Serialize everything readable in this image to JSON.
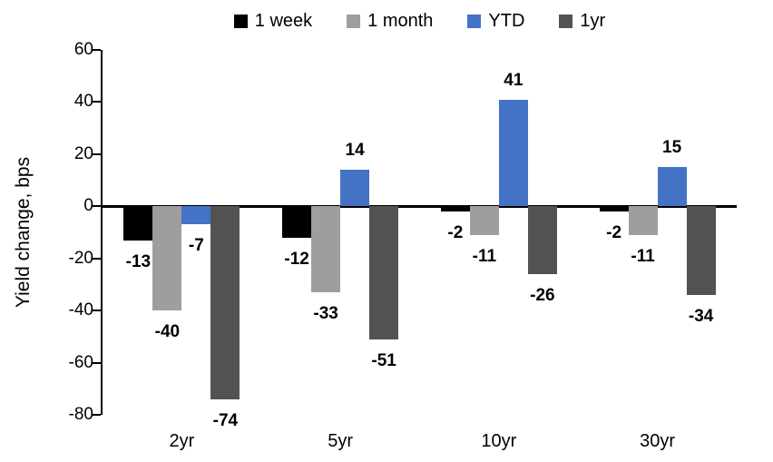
{
  "chart_data": {
    "type": "bar",
    "title": "",
    "xlabel": "",
    "ylabel": "Yield change, bps",
    "categories": [
      "2yr",
      "5yr",
      "10yr",
      "30yr"
    ],
    "series": [
      {
        "name": "1 week",
        "color": "#000000",
        "values": [
          -13,
          -12,
          -2,
          -2
        ]
      },
      {
        "name": "1 month",
        "color": "#9E9E9E",
        "values": [
          -40,
          -33,
          -11,
          -11
        ]
      },
      {
        "name": "YTD",
        "color": "#4472C4",
        "values": [
          -7,
          14,
          41,
          15
        ]
      },
      {
        "name": "1yr",
        "color": "#525252",
        "values": [
          -74,
          -51,
          -26,
          -34
        ]
      }
    ],
    "ylim": [
      -80,
      60
    ],
    "yticks": [
      60,
      40,
      20,
      0,
      -20,
      -40,
      -60,
      -80
    ],
    "grid": false,
    "legend_position": "top",
    "data_labels": true,
    "axis_color": "#000000"
  }
}
